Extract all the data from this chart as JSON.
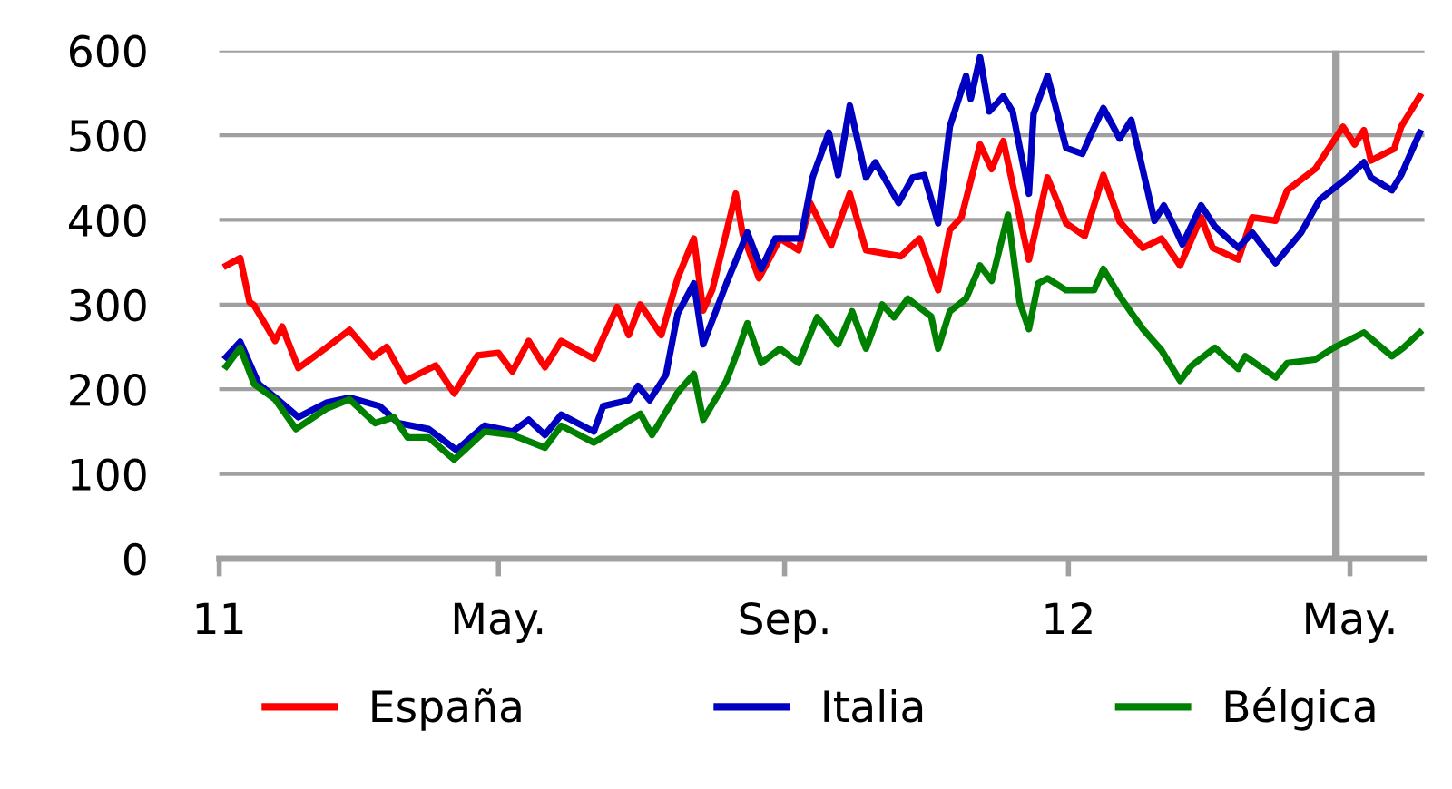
{
  "chart_data": {
    "type": "line",
    "xlim": [
      "2011-01-01",
      "2012-06-02"
    ],
    "ylim": [
      0,
      600
    ],
    "yticks": [
      0,
      100,
      200,
      300,
      400,
      500,
      600
    ],
    "xticks": [
      {
        "value": "2011-01-01",
        "label": "11"
      },
      {
        "value": "2011-05-01",
        "label": "May."
      },
      {
        "value": "2011-09-01",
        "label": "Sep."
      },
      {
        "value": "2012-01-01",
        "label": "12"
      },
      {
        "value": "2012-05-01",
        "label": "May."
      }
    ],
    "grid": "y",
    "legend": "bottom",
    "line_style": "solid",
    "marker": "none",
    "ref_lines": [
      {
        "axis": "x",
        "value": "2012-04-25",
        "label": null,
        "color": "#a0a0a0"
      }
    ],
    "series": [
      {
        "name": "España",
        "color": "#ff0000",
        "x": [
          "2011-01-04",
          "2011-01-10",
          "2011-01-14",
          "2011-01-16",
          "2011-01-25",
          "2011-01-28",
          "2011-02-04",
          "2011-02-16",
          "2011-02-26",
          "2011-03-08",
          "2011-03-14",
          "2011-03-22",
          "2011-04-04",
          "2011-04-12",
          "2011-04-22",
          "2011-05-01",
          "2011-05-07",
          "2011-05-14",
          "2011-05-21",
          "2011-05-28",
          "2011-06-11",
          "2011-06-21",
          "2011-06-26",
          "2011-07-01",
          "2011-07-10",
          "2011-07-17",
          "2011-07-24",
          "2011-07-28",
          "2011-08-01",
          "2011-08-11",
          "2011-08-14",
          "2011-08-21",
          "2011-08-30",
          "2011-09-07",
          "2011-09-12",
          "2011-09-21",
          "2011-09-29",
          "2011-10-06",
          "2011-10-21",
          "2011-10-29",
          "2011-11-06",
          "2011-11-11",
          "2011-11-16",
          "2011-11-24",
          "2011-11-29",
          "2011-12-04",
          "2011-12-15",
          "2011-12-23",
          "2011-12-31",
          "2012-01-08",
          "2012-01-16",
          "2012-01-23",
          "2012-02-02",
          "2012-02-10",
          "2012-02-18",
          "2012-02-27",
          "2012-03-03",
          "2012-03-14",
          "2012-03-20",
          "2012-03-30",
          "2012-04-04",
          "2012-04-16",
          "2012-04-28",
          "2012-05-03",
          "2012-05-07",
          "2012-05-10",
          "2012-05-20",
          "2012-05-23",
          "2012-05-31"
        ],
        "values": [
          346,
          355,
          303,
          299,
          257,
          274,
          225,
          249,
          270,
          238,
          250,
          210,
          228,
          195,
          240,
          243,
          221,
          257,
          226,
          257,
          236,
          297,
          264,
          300,
          264,
          331,
          378,
          293,
          318,
          431,
          383,
          331,
          378,
          364,
          420,
          370,
          431,
          364,
          357,
          378,
          317,
          388,
          403,
          489,
          460,
          493,
          353,
          450,
          396,
          381,
          453,
          398,
          367,
          378,
          346,
          403,
          367,
          353,
          403,
          399,
          435,
          460,
          510,
          489,
          506,
          470,
          484,
          510,
          546
        ]
      },
      {
        "name": "Italia",
        "color": "#0000c0",
        "x": [
          "2011-01-04",
          "2011-01-10",
          "2011-01-18",
          "2011-01-26",
          "2011-02-04",
          "2011-02-16",
          "2011-02-26",
          "2011-03-11",
          "2011-03-19",
          "2011-04-01",
          "2011-04-13",
          "2011-04-25",
          "2011-05-07",
          "2011-05-14",
          "2011-05-21",
          "2011-05-28",
          "2011-06-11",
          "2011-06-15",
          "2011-06-26",
          "2011-06-30",
          "2011-07-05",
          "2011-07-12",
          "2011-07-17",
          "2011-07-24",
          "2011-07-28",
          "2011-08-07",
          "2011-08-16",
          "2011-08-22",
          "2011-08-28",
          "2011-09-08",
          "2011-09-13",
          "2011-09-20",
          "2011-09-24",
          "2011-09-29",
          "2011-10-06",
          "2011-10-10",
          "2011-10-20",
          "2011-10-26",
          "2011-10-31",
          "2011-11-06",
          "2011-11-11",
          "2011-11-18",
          "2011-11-20",
          "2011-11-24",
          "2011-11-28",
          "2011-12-04",
          "2011-12-08",
          "2011-12-15",
          "2011-12-17",
          "2011-12-23",
          "2011-12-27",
          "2011-12-31",
          "2012-01-07",
          "2012-01-11",
          "2012-01-16",
          "2012-01-23",
          "2012-01-28",
          "2012-02-07",
          "2012-02-11",
          "2012-02-16",
          "2012-02-19",
          "2012-02-27",
          "2012-03-04",
          "2012-03-14",
          "2012-03-20",
          "2012-03-30",
          "2012-04-10",
          "2012-04-18",
          "2012-04-30",
          "2012-05-07",
          "2012-05-10",
          "2012-05-19",
          "2012-05-23",
          "2012-05-31"
        ],
        "values": [
          238,
          256,
          206,
          188,
          167,
          184,
          190,
          180,
          160,
          153,
          128,
          157,
          150,
          164,
          146,
          170,
          150,
          180,
          187,
          204,
          187,
          217,
          289,
          325,
          253,
          325,
          385,
          342,
          378,
          378,
          450,
          503,
          453,
          535,
          450,
          468,
          420,
          450,
          453,
          396,
          510,
          570,
          543,
          592,
          528,
          546,
          528,
          431,
          525,
          570,
          528,
          485,
          478,
          503,
          532,
          496,
          518,
          399,
          417,
          389,
          371,
          417,
          392,
          367,
          385,
          349,
          385,
          424,
          450,
          468,
          450,
          435,
          453,
          503
        ]
      },
      {
        "name": "Bélgica",
        "color": "#008000",
        "x": [
          "2011-01-04",
          "2011-01-10",
          "2011-01-16",
          "2011-01-25",
          "2011-02-03",
          "2011-02-16",
          "2011-02-26",
          "2011-03-09",
          "2011-03-17",
          "2011-03-23",
          "2011-04-01",
          "2011-04-12",
          "2011-04-25",
          "2011-05-07",
          "2011-05-21",
          "2011-05-28",
          "2011-06-11",
          "2011-06-21",
          "2011-07-01",
          "2011-07-06",
          "2011-07-17",
          "2011-07-24",
          "2011-07-28",
          "2011-08-07",
          "2011-08-12",
          "2011-08-16",
          "2011-08-22",
          "2011-08-30",
          "2011-09-07",
          "2011-09-15",
          "2011-09-24",
          "2011-09-30",
          "2011-10-06",
          "2011-10-13",
          "2011-10-18",
          "2011-10-24",
          "2011-11-03",
          "2011-11-06",
          "2011-11-11",
          "2011-11-18",
          "2011-11-24",
          "2011-11-29",
          "2011-12-06",
          "2011-12-11",
          "2011-12-15",
          "2011-12-19",
          "2011-12-23",
          "2011-12-31",
          "2012-01-12",
          "2012-01-16",
          "2012-01-23",
          "2012-02-02",
          "2012-02-10",
          "2012-02-18",
          "2012-02-23",
          "2012-03-04",
          "2012-03-14",
          "2012-03-17",
          "2012-03-30",
          "2012-04-04",
          "2012-04-16",
          "2012-04-24",
          "2012-05-07",
          "2012-05-19",
          "2012-05-24",
          "2012-05-31"
        ],
        "values": [
          227,
          249,
          206,
          188,
          153,
          177,
          188,
          160,
          167,
          143,
          143,
          117,
          150,
          146,
          131,
          157,
          137,
          154,
          171,
          146,
          196,
          218,
          164,
          210,
          246,
          278,
          231,
          248,
          231,
          285,
          253,
          292,
          248,
          300,
          285,
          307,
          286,
          248,
          292,
          307,
          346,
          328,
          406,
          303,
          271,
          325,
          331,
          317,
          317,
          342,
          310,
          271,
          246,
          210,
          228,
          249,
          224,
          239,
          214,
          231,
          235,
          249,
          267,
          239,
          249,
          267
        ]
      }
    ]
  }
}
